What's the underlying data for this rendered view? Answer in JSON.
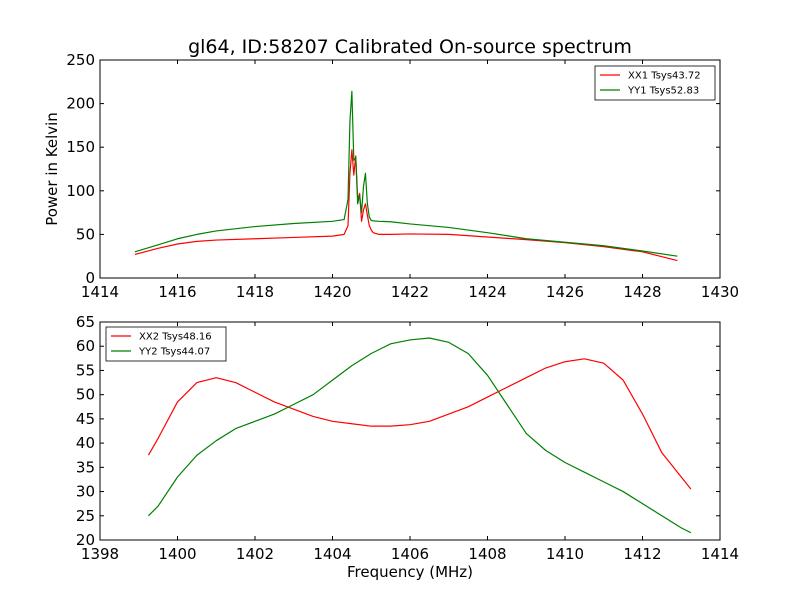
{
  "page": {
    "title": "gl64, ID:58207 Calibrated On-source spectrum"
  },
  "chart_data": [
    {
      "type": "line",
      "title": "gl64, ID:58207 Calibrated On-source spectrum",
      "ylabel": "Power in Kelvin",
      "xlabel": "",
      "xlim": [
        1414,
        1430
      ],
      "ylim": [
        0,
        250
      ],
      "xticks": [
        "1414",
        "1416",
        "1418",
        "1420",
        "1422",
        "1424",
        "1426",
        "1428",
        "1430"
      ],
      "yticks": [
        "0",
        "50",
        "100",
        "150",
        "200",
        "250"
      ],
      "legend": "top-right",
      "grid": false,
      "series": [
        {
          "name": "XX1 Tsys43.72",
          "color": "#ff0000",
          "x": [
            1414.9,
            1415.5,
            1416,
            1416.5,
            1417,
            1418,
            1419,
            1420,
            1420.3,
            1420.4,
            1420.45,
            1420.5,
            1420.55,
            1420.6,
            1420.65,
            1420.7,
            1420.75,
            1420.8,
            1420.85,
            1420.9,
            1420.95,
            1421.0,
            1421.05,
            1421.2,
            1421.5,
            1422,
            1423,
            1424,
            1425,
            1426,
            1427,
            1428,
            1428.9
          ],
          "y": [
            27,
            34,
            39,
            42,
            43.5,
            45,
            46.5,
            48,
            50,
            60,
            120,
            147,
            118,
            140,
            90,
            97,
            65,
            78,
            85,
            72,
            60,
            55,
            52,
            50,
            50,
            50.5,
            50,
            47,
            44,
            40.5,
            36,
            30,
            20
          ]
        },
        {
          "name": "YY1 Tsys52.83",
          "color": "#008000",
          "x": [
            1414.9,
            1415.5,
            1416,
            1416.5,
            1417,
            1418,
            1419,
            1420,
            1420.3,
            1420.4,
            1420.45,
            1420.5,
            1420.55,
            1420.6,
            1420.65,
            1420.7,
            1420.75,
            1420.8,
            1420.85,
            1420.9,
            1420.95,
            1421.0,
            1421.05,
            1421.2,
            1421.5,
            1422,
            1423,
            1424,
            1425,
            1426,
            1427,
            1428,
            1428.9
          ],
          "y": [
            30,
            38,
            45,
            50,
            54,
            59,
            62.5,
            65,
            67,
            90,
            180,
            214,
            135,
            138,
            85,
            95,
            75,
            105,
            120,
            85,
            70,
            66,
            65.5,
            65,
            64.5,
            62,
            58,
            52,
            45,
            41,
            37,
            31,
            25
          ]
        }
      ]
    },
    {
      "type": "line",
      "title": "",
      "xlabel": "Frequency (MHz)",
      "ylabel": "",
      "xlim": [
        1398,
        1414
      ],
      "ylim": [
        20,
        65
      ],
      "xticks": [
        "1398",
        "1400",
        "1402",
        "1404",
        "1406",
        "1408",
        "1410",
        "1412",
        "1414"
      ],
      "yticks": [
        "20",
        "25",
        "30",
        "35",
        "40",
        "45",
        "50",
        "55",
        "60",
        "65"
      ],
      "legend": "top-left",
      "grid": false,
      "series": [
        {
          "name": "XX2 Tsys48.16",
          "color": "#ff0000",
          "x": [
            1399.25,
            1399.5,
            1400,
            1400.5,
            1401,
            1401.5,
            1402,
            1402.5,
            1403,
            1403.5,
            1404,
            1404.5,
            1405,
            1405.5,
            1406,
            1406.5,
            1407,
            1407.5,
            1408,
            1408.5,
            1409,
            1409.5,
            1410,
            1410.5,
            1411,
            1411.5,
            1412,
            1412.5,
            1413,
            1413.25
          ],
          "y": [
            37.5,
            41,
            48.5,
            52.5,
            53.5,
            52.5,
            50.5,
            48.5,
            47,
            45.5,
            44.5,
            44,
            43.5,
            43.5,
            43.8,
            44.5,
            46,
            47.5,
            49.5,
            51.5,
            53.5,
            55.5,
            56.8,
            57.4,
            56.5,
            53,
            46,
            38,
            33,
            30.5
          ]
        },
        {
          "name": "YY2 Tsys44.07",
          "color": "#008000",
          "x": [
            1399.25,
            1399.5,
            1400,
            1400.5,
            1401,
            1401.5,
            1402,
            1402.5,
            1403,
            1403.5,
            1404,
            1404.5,
            1405,
            1405.5,
            1406,
            1406.5,
            1407,
            1407.5,
            1408,
            1408.5,
            1409,
            1409.5,
            1410,
            1410.5,
            1411,
            1411.5,
            1412,
            1412.5,
            1413,
            1413.25
          ],
          "y": [
            25,
            27,
            33,
            37.5,
            40.5,
            43,
            44.5,
            46,
            48,
            50,
            53,
            56,
            58.5,
            60.5,
            61.3,
            61.7,
            60.8,
            58.5,
            54,
            48,
            42,
            38.5,
            36,
            34,
            32,
            30,
            27.5,
            25,
            22.5,
            21.5
          ]
        }
      ]
    }
  ]
}
